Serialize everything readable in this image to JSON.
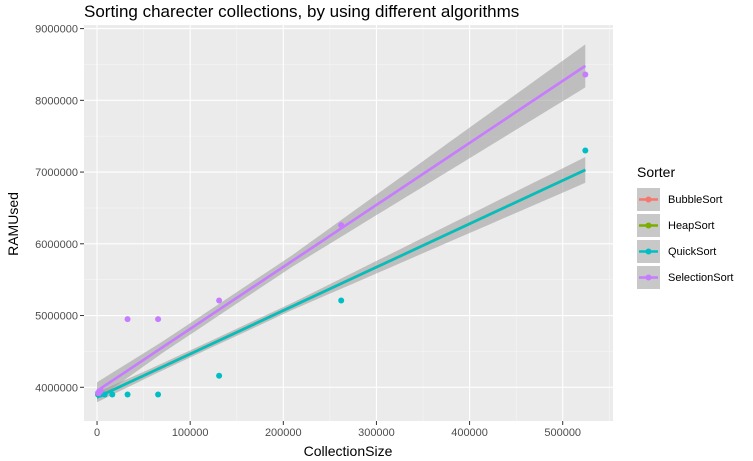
{
  "chart_data": {
    "type": "scatter",
    "title": "Sorting charecter collections, by using different algorithms",
    "xlabel": "CollectionSize",
    "ylabel": "RAMUsed",
    "xlim": [
      -14000,
      554000
    ],
    "ylim": [
      3530000,
      9050000
    ],
    "x_ticks": [
      {
        "value": 0,
        "label": "0"
      },
      {
        "value": 100000,
        "label": "100000"
      },
      {
        "value": 200000,
        "label": "200000"
      },
      {
        "value": 300000,
        "label": "300000"
      },
      {
        "value": 400000,
        "label": "400000"
      },
      {
        "value": 500000,
        "label": "500000"
      }
    ],
    "y_ticks": [
      {
        "value": 4000000,
        "label": "4000000"
      },
      {
        "value": 5000000,
        "label": "5000000"
      },
      {
        "value": 6000000,
        "label": "6000000"
      },
      {
        "value": 7000000,
        "label": "7000000"
      },
      {
        "value": 8000000,
        "label": "8000000"
      },
      {
        "value": 9000000,
        "label": "9000000"
      }
    ],
    "grid": true,
    "legend_position": "right",
    "legend_title": "Sorter",
    "series": [
      {
        "name": "BubbleSort",
        "color": "#F8766D",
        "points": [],
        "fit": {
          "x": [
            0,
            524288
          ],
          "y": [
            3860000,
            7030000
          ]
        }
      },
      {
        "name": "HeapSort",
        "color": "#7CAE00",
        "points": [],
        "fit": {
          "x": [
            0,
            524288
          ],
          "y": [
            3860000,
            7030000
          ]
        }
      },
      {
        "name": "QuickSort",
        "color": "#00BFC4",
        "points": [
          {
            "x": 1000,
            "y": 3900000
          },
          {
            "x": 2000,
            "y": 3900000
          },
          {
            "x": 4096,
            "y": 3900000
          },
          {
            "x": 8192,
            "y": 3900000
          },
          {
            "x": 16384,
            "y": 3900000
          },
          {
            "x": 32768,
            "y": 3900000
          },
          {
            "x": 65536,
            "y": 3900000
          },
          {
            "x": 131072,
            "y": 4160000
          },
          {
            "x": 262144,
            "y": 5210000
          },
          {
            "x": 524288,
            "y": 7300000
          }
        ],
        "fit": {
          "x": [
            0,
            524288
          ],
          "y": [
            3860000,
            7030000
          ]
        },
        "band_halfwidth": [
          70000,
          180000
        ],
        "band_min": 50000
      },
      {
        "name": "SelectionSort",
        "color": "#C77CFF",
        "points": [
          {
            "x": 1000,
            "y": 3920000
          },
          {
            "x": 2000,
            "y": 3920000
          },
          {
            "x": 4096,
            "y": 3950000
          },
          {
            "x": 32768,
            "y": 4950000
          },
          {
            "x": 65536,
            "y": 4950000
          },
          {
            "x": 131072,
            "y": 5210000
          },
          {
            "x": 262144,
            "y": 6260000
          },
          {
            "x": 524288,
            "y": 8360000
          }
        ],
        "fit": {
          "x": [
            0,
            524288
          ],
          "y": [
            3950000,
            8480000
          ]
        },
        "band_halfwidth": [
          120000,
          300000
        ],
        "band_min": 80000
      }
    ]
  }
}
